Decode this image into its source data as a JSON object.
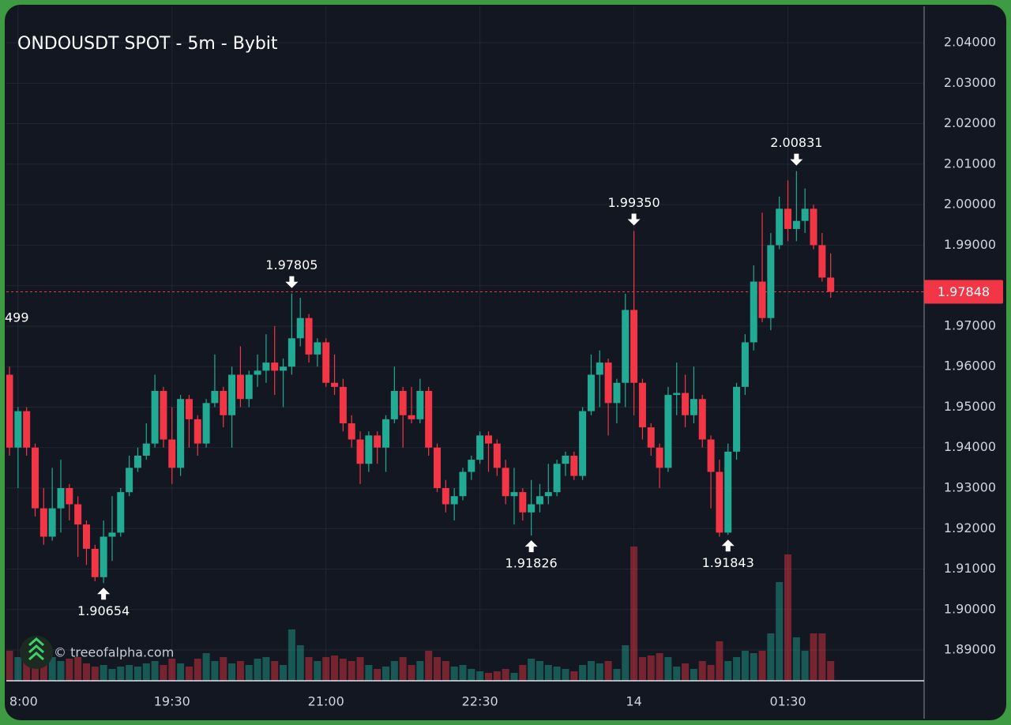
{
  "chart_data": {
    "type": "candlestick",
    "title": "ONDOUSDT SPOT - 5m - Bybit",
    "watermark": "© treeofalpha.com",
    "annotations": [
      "499"
    ],
    "categories": [
      null,
      null,
      null,
      null,
      null,
      null,
      null,
      null,
      null,
      null,
      null,
      null,
      null,
      null,
      null,
      null,
      null,
      null,
      null,
      null,
      null,
      null,
      null,
      null,
      null,
      null,
      null,
      null,
      null,
      null,
      null,
      null,
      null,
      null,
      null,
      null,
      null,
      null,
      null,
      null,
      null,
      null,
      null,
      null,
      null,
      null,
      null,
      null,
      null,
      null,
      null,
      null,
      null,
      null,
      null,
      null,
      null,
      null,
      null,
      null,
      null,
      null,
      null,
      null,
      null,
      null,
      null,
      null,
      null,
      null,
      null,
      null,
      null,
      null,
      null,
      null,
      null,
      null,
      null,
      null,
      null,
      null,
      null,
      null,
      null,
      null,
      null,
      null,
      null,
      null,
      null,
      null,
      null,
      null,
      null,
      null,
      null
    ],
    "open": [
      1.958,
      1.94,
      1.949,
      1.94,
      1.925,
      1.918,
      1.925,
      1.93,
      1.926,
      1.921,
      1.915,
      1.908,
      1.918,
      1.919,
      1.929,
      1.935,
      1.938,
      1.941,
      1.954,
      1.942,
      1.935,
      1.952,
      1.947,
      1.941,
      1.951,
      1.954,
      1.948,
      1.958,
      1.952,
      1.958,
      1.959,
      1.961,
      1.959,
      1.96,
      1.967,
      1.972,
      1.963,
      1.966,
      1.956,
      1.955,
      1.946,
      1.942,
      1.936,
      1.943,
      1.94,
      1.947,
      1.954,
      1.948,
      1.947,
      1.954,
      1.94,
      1.93,
      1.926,
      1.928,
      1.934,
      1.937,
      1.943,
      1.941,
      1.935,
      1.928,
      1.929,
      1.924,
      1.926,
      1.928,
      1.929,
      1.936,
      1.938,
      1.933,
      1.949,
      1.958,
      1.961,
      1.951,
      1.956,
      1.974,
      1.956,
      1.945,
      1.94,
      1.935,
      1.953,
      1.9535,
      1.948,
      1.952,
      1.942,
      1.934,
      1.919,
      1.939,
      1.955,
      1.966,
      1.981,
      1.972,
      1.99,
      1.999,
      1.994,
      1.996,
      1.999,
      1.99,
      1.982
    ],
    "high": [
      1.96,
      1.95,
      1.95,
      1.941,
      1.93,
      1.935,
      1.937,
      1.931,
      1.928,
      1.922,
      1.916,
      1.922,
      1.928,
      1.93,
      1.938,
      1.94,
      1.946,
      1.958,
      1.955,
      1.95,
      1.953,
      1.953,
      1.948,
      1.952,
      1.963,
      1.955,
      1.96,
      1.965,
      1.959,
      1.963,
      1.968,
      1.97,
      1.962,
      1.97805,
      1.977,
      1.973,
      1.967,
      1.967,
      1.963,
      1.957,
      1.948,
      1.944,
      1.944,
      1.944,
      1.948,
      1.96,
      1.955,
      1.955,
      1.957,
      1.955,
      1.941,
      1.932,
      1.93,
      1.935,
      1.938,
      1.944,
      1.944,
      1.942,
      1.937,
      1.935,
      1.93,
      1.932,
      1.931,
      1.936,
      1.937,
      1.939,
      1.939,
      1.95,
      1.963,
      1.964,
      1.962,
      1.957,
      1.978,
      1.9935,
      1.957,
      1.946,
      1.941,
      1.955,
      1.961,
      1.958,
      1.96,
      1.953,
      1.943,
      1.937,
      1.941,
      1.956,
      1.968,
      1.985,
      1.998,
      1.993,
      2.002,
      2.006,
      2.00831,
      2.004,
      2.0,
      1.993,
      1.988
    ],
    "low": [
      1.938,
      1.93,
      1.938,
      1.923,
      1.916,
      1.917,
      1.919,
      1.922,
      1.913,
      1.911,
      1.907,
      1.90654,
      1.912,
      1.918,
      1.928,
      1.934,
      1.937,
      1.94,
      1.94,
      1.931,
      1.933,
      1.94,
      1.938,
      1.94,
      1.95,
      1.945,
      1.94,
      1.95,
      1.95,
      1.955,
      1.956,
      1.953,
      1.95,
      1.958,
      1.965,
      1.961,
      1.96,
      1.955,
      1.953,
      1.944,
      1.94,
      1.931,
      1.934,
      1.936,
      1.934,
      1.946,
      1.94,
      1.946,
      1.946,
      1.938,
      1.929,
      1.924,
      1.922,
      1.927,
      1.932,
      1.936,
      1.934,
      1.933,
      1.926,
      1.921,
      1.922,
      1.91826,
      1.924,
      1.926,
      1.928,
      1.933,
      1.932,
      1.932,
      1.948,
      1.95,
      1.943,
      1.946,
      1.95,
      1.948,
      1.942,
      1.938,
      1.93,
      1.934,
      1.948,
      1.945,
      1.946,
      1.94,
      1.925,
      1.918,
      1.91843,
      1.937,
      1.953,
      1.964,
      1.971,
      1.969,
      1.989,
      1.991,
      1.991,
      1.993,
      1.989,
      1.981,
      1.977
    ],
    "close": [
      1.94,
      1.949,
      1.94,
      1.925,
      1.918,
      1.925,
      1.93,
      1.926,
      1.921,
      1.915,
      1.908,
      1.918,
      1.919,
      1.929,
      1.935,
      1.938,
      1.941,
      1.954,
      1.942,
      1.935,
      1.952,
      1.947,
      1.941,
      1.951,
      1.954,
      1.948,
      1.958,
      1.952,
      1.958,
      1.959,
      1.961,
      1.959,
      1.96,
      1.967,
      1.972,
      1.963,
      1.966,
      1.956,
      1.955,
      1.946,
      1.942,
      1.936,
      1.943,
      1.94,
      1.947,
      1.954,
      1.948,
      1.947,
      1.954,
      1.94,
      1.93,
      1.926,
      1.928,
      1.934,
      1.937,
      1.943,
      1.941,
      1.935,
      1.928,
      1.929,
      1.924,
      1.926,
      1.928,
      1.929,
      1.936,
      1.938,
      1.933,
      1.949,
      1.958,
      1.961,
      1.951,
      1.956,
      1.974,
      1.956,
      1.945,
      1.94,
      1.935,
      1.953,
      1.9535,
      1.948,
      1.952,
      1.942,
      1.934,
      1.919,
      1.939,
      1.955,
      1.966,
      1.981,
      1.972,
      1.99,
      1.999,
      1.994,
      1.996,
      1.999,
      1.99,
      1.982,
      1.97848
    ],
    "high_labels": [
      null,
      null,
      null,
      null,
      null,
      null,
      null,
      null,
      null,
      null,
      null,
      null,
      null,
      null,
      null,
      null,
      null,
      null,
      null,
      null,
      null,
      null,
      null,
      null,
      null,
      null,
      null,
      null,
      null,
      null,
      null,
      null,
      null,
      "1.97805",
      null,
      null,
      null,
      null,
      null,
      null,
      null,
      null,
      null,
      null,
      null,
      null,
      null,
      null,
      null,
      null,
      null,
      null,
      null,
      null,
      null,
      null,
      null,
      null,
      null,
      null,
      null,
      null,
      null,
      null,
      null,
      null,
      null,
      null,
      null,
      null,
      null,
      null,
      null,
      "1.99350",
      null,
      null,
      null,
      null,
      null,
      null,
      null,
      null,
      null,
      null,
      null,
      null,
      null,
      null,
      null,
      null,
      null,
      null,
      "2.00831",
      null,
      null,
      null,
      null
    ],
    "low_labels": [
      null,
      null,
      null,
      null,
      null,
      null,
      null,
      null,
      null,
      null,
      null,
      "1.90654",
      null,
      null,
      null,
      null,
      null,
      null,
      null,
      null,
      null,
      null,
      null,
      null,
      null,
      null,
      null,
      null,
      null,
      null,
      null,
      null,
      null,
      null,
      null,
      null,
      null,
      null,
      null,
      null,
      null,
      null,
      null,
      null,
      null,
      null,
      null,
      null,
      null,
      null,
      null,
      null,
      null,
      null,
      null,
      null,
      null,
      null,
      null,
      null,
      null,
      "1.91826",
      null,
      null,
      null,
      null,
      null,
      null,
      null,
      null,
      null,
      null,
      null,
      null,
      null,
      null,
      null,
      null,
      null,
      null,
      null,
      null,
      null,
      null,
      "1.91843",
      null,
      null,
      null,
      null,
      null,
      null,
      null,
      null,
      null,
      null,
      null,
      null
    ],
    "volume": [
      38,
      30,
      35,
      28,
      22,
      30,
      25,
      28,
      30,
      22,
      18,
      20,
      15,
      18,
      20,
      18,
      22,
      25,
      20,
      28,
      22,
      18,
      28,
      35,
      25,
      30,
      22,
      25,
      20,
      28,
      30,
      25,
      20,
      65,
      45,
      30,
      25,
      30,
      32,
      28,
      25,
      30,
      20,
      15,
      18,
      25,
      30,
      20,
      25,
      38,
      30,
      25,
      18,
      20,
      15,
      12,
      10,
      12,
      15,
      10,
      20,
      28,
      25,
      20,
      18,
      15,
      12,
      20,
      25,
      22,
      25,
      15,
      45,
      170,
      30,
      32,
      35,
      30,
      18,
      22,
      15,
      25,
      20,
      50,
      25,
      30,
      38,
      35,
      38,
      60,
      125,
      160,
      55,
      38,
      60,
      60,
      25
    ],
    "up_color": "#22ab94",
    "down_color": "#f23645",
    "ylim": [
      1.8824,
      2.049
    ],
    "yticks": [
      {
        "value": 1.89,
        "label": "1.89000"
      },
      {
        "value": 1.9,
        "label": "1.90000"
      },
      {
        "value": 1.91,
        "label": "1.91000"
      },
      {
        "value": 1.92,
        "label": "1.92000"
      },
      {
        "value": 1.93,
        "label": "1.93000"
      },
      {
        "value": 1.94,
        "label": "1.94000"
      },
      {
        "value": 1.95,
        "label": "1.95000"
      },
      {
        "value": 1.96,
        "label": "1.96000"
      },
      {
        "value": 1.97,
        "label": "1.97000"
      },
      {
        "value": 1.98,
        "label": "1.98000"
      },
      {
        "value": 1.99,
        "label": "1.99000"
      },
      {
        "value": 2.0,
        "label": "2.00000"
      },
      {
        "value": 2.01,
        "label": "2.01000"
      },
      {
        "value": 2.02,
        "label": "2.02000"
      },
      {
        "value": 2.03,
        "label": "2.03000"
      },
      {
        "value": 2.04,
        "label": "2.04000"
      }
    ],
    "xticks": [
      {
        "value": 1,
        "label": "8:00"
      },
      {
        "value": 19,
        "label": "19:30"
      },
      {
        "value": 37,
        "label": "21:00"
      },
      {
        "value": 55,
        "label": "22:30"
      },
      {
        "value": 73,
        "label": "14"
      },
      {
        "value": 91,
        "label": "01:30"
      }
    ],
    "grid": true
  }
}
